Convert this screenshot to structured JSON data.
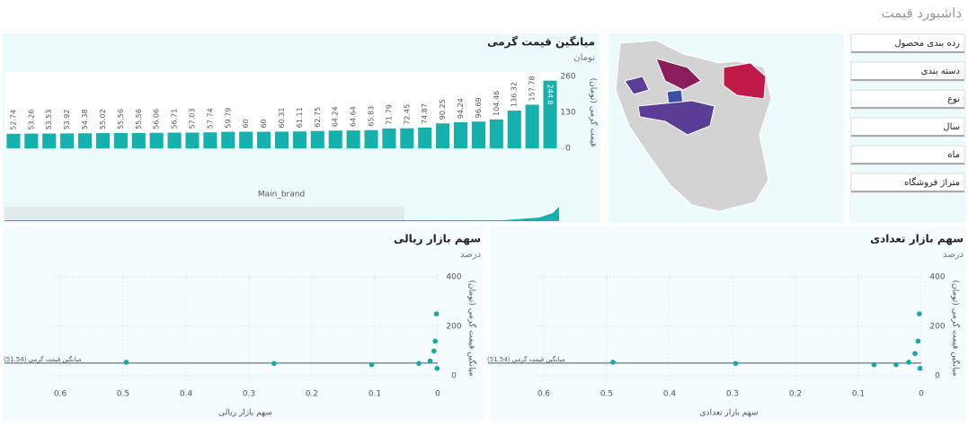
{
  "title": "داشبورد قیمت",
  "filters": [
    "رده بندی محصول",
    "دسته بندی",
    "نوع",
    "سال",
    "ماه",
    "متراژ فروشگاه"
  ],
  "chart_data": [
    {
      "type": "bar",
      "title": "میانگین قیمت گرمی",
      "subtitle": "تومان",
      "x_label": "Main_brand",
      "y_label": "قیمت گرمی (تومان)",
      "color": "#17b1ad",
      "categories": [
        null,
        null,
        null,
        null,
        null,
        null,
        null,
        null,
        null,
        null,
        null,
        null,
        null,
        null,
        null,
        null,
        null,
        null,
        null,
        null,
        null,
        null,
        null,
        null,
        null,
        null,
        null,
        null,
        null,
        null,
        null
      ],
      "values": [
        52.74,
        53.26,
        53.53,
        53.92,
        54.38,
        55.02,
        55.56,
        55.56,
        56.06,
        56.71,
        57.03,
        57.74,
        59.79,
        60,
        60,
        60.31,
        61.11,
        62.75,
        64.24,
        64.64,
        65.83,
        71.79,
        72.45,
        74.87,
        90.25,
        94.24,
        96.69,
        104.46,
        136.32,
        157.78,
        244.8
      ],
      "ylim": [
        0,
        260
      ],
      "yticks": [
        0,
        130,
        260
      ]
    },
    {
      "type": "scatter",
      "title": "سهم بازار ریالی",
      "subtitle": "درصد",
      "x_label": "سهم بازار ریالی",
      "y_label": "میانگین قیمت گرمی (تومان)",
      "color": "#17a7a6",
      "x": [
        0.495,
        0.26,
        0.105,
        0.03,
        0.012,
        0.006,
        0.004,
        0.002,
        0.001
      ],
      "values": [
        55,
        50,
        45,
        50,
        60,
        100,
        140,
        250,
        30
      ],
      "xlim": [
        0.61,
        0
      ],
      "xticks": [
        0.6,
        0.5,
        0.4,
        0.3,
        0.2,
        0.1,
        0
      ],
      "ylim": [
        -25,
        410
      ],
      "yticks": [
        0,
        200,
        400
      ],
      "grid": true,
      "ref_line": {
        "value": 51.54,
        "label": "میانگین قیمت گرمی (51.54)"
      }
    },
    {
      "type": "scatter",
      "title": "سهم بازار تعدادی",
      "subtitle": "درصد",
      "x_label": "سهم بازار تعدادی",
      "y_label": "میانگین قیمت گرمی (تومان)",
      "color": "#17a7a6",
      "x": [
        0.49,
        0.295,
        0.075,
        0.04,
        0.02,
        0.01,
        0.005,
        0.003,
        0.002
      ],
      "values": [
        55,
        50,
        45,
        45,
        55,
        90,
        140,
        250,
        30
      ],
      "xlim": [
        0.61,
        0
      ],
      "xticks": [
        0.6,
        0.5,
        0.4,
        0.3,
        0.2,
        0.1,
        0
      ],
      "ylim": [
        -25,
        410
      ],
      "yticks": [
        0,
        200,
        400
      ],
      "grid": true,
      "ref_line": {
        "value": 51.54,
        "label": "میانگین قیمت گرمی (51.54)"
      }
    }
  ]
}
